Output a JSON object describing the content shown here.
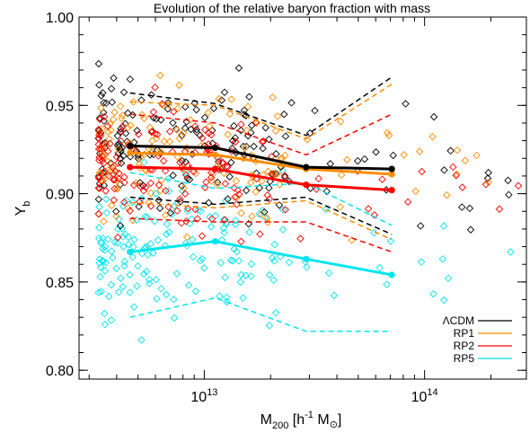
{
  "chart_data": {
    "type": "scatter",
    "title": "Evolution of the relative  baryon fraction with mass",
    "xlabel": {
      "main": "M",
      "sub": "200",
      "unit_open": " [h",
      "unit_exp": "-1",
      "unit_mid": " M",
      "unit_sub": "⊙",
      "unit_close": "]"
    },
    "ylabel": {
      "main": "Y",
      "sub": "b"
    },
    "x_scale": "log",
    "xlim": [
      2700000000000.0,
      290000000000000.0
    ],
    "ylim": [
      0.795,
      1.0
    ],
    "x_ticks": [
      {
        "value": 10000000000000.0,
        "base": "10",
        "exp": "13"
      },
      {
        "value": 100000000000000.0,
        "base": "10",
        "exp": "14"
      }
    ],
    "y_ticks": [
      {
        "value": 0.8,
        "label": "0.80"
      },
      {
        "value": 0.85,
        "label": "0.85"
      },
      {
        "value": 0.9,
        "label": "0.90"
      },
      {
        "value": 0.95,
        "label": "0.95"
      },
      {
        "value": 1.0,
        "label": "1.00"
      }
    ],
    "legend_position": "bottom-right",
    "series": [
      {
        "name": "ΛCDM",
        "color": "#000000",
        "median": {
          "x": [
            4600000000000.0,
            11200000000000.0,
            29000000000000.0,
            71000000000000.0
          ],
          "y": [
            0.927,
            0.926,
            0.915,
            0.914
          ]
        },
        "upper": {
          "x": [
            4600000000000.0,
            11200000000000.0,
            29000000000000.0,
            71000000000000.0
          ],
          "y": [
            0.957,
            0.951,
            0.933,
            0.966
          ]
        },
        "lower": {
          "x": [
            4600000000000.0,
            11200000000000.0,
            29000000000000.0,
            71000000000000.0
          ],
          "y": [
            0.898,
            0.894,
            0.898,
            0.877
          ]
        }
      },
      {
        "name": "RP1",
        "color": "#ff8c00",
        "median": {
          "x": [
            4600000000000.0,
            11200000000000.0,
            29000000000000.0,
            71000000000000.0
          ],
          "y": [
            0.923,
            0.922,
            0.914,
            0.911
          ]
        },
        "upper": {
          "x": [
            4600000000000.0,
            11200000000000.0,
            29000000000000.0,
            71000000000000.0
          ],
          "y": [
            0.952,
            0.95,
            0.931,
            0.962
          ]
        },
        "lower": {
          "x": [
            4600000000000.0,
            11200000000000.0,
            29000000000000.0,
            71000000000000.0
          ],
          "y": [
            0.895,
            0.892,
            0.896,
            0.874
          ]
        }
      },
      {
        "name": "RP2",
        "color": "#ff0000",
        "median": {
          "x": [
            4600000000000.0,
            11200000000000.0,
            29000000000000.0,
            71000000000000.0
          ],
          "y": [
            0.915,
            0.914,
            0.905,
            0.902
          ]
        },
        "upper": {
          "x": [
            4600000000000.0,
            11200000000000.0,
            29000000000000.0,
            71000000000000.0
          ],
          "y": [
            0.945,
            0.94,
            0.922,
            0.945
          ]
        },
        "lower": {
          "x": [
            4600000000000.0,
            11200000000000.0,
            29000000000000.0,
            71000000000000.0
          ],
          "y": [
            0.886,
            0.884,
            0.884,
            0.867
          ]
        }
      },
      {
        "name": "RP5",
        "color": "#00e5ee",
        "median": {
          "x": [
            4600000000000.0,
            11200000000000.0,
            29000000000000.0,
            71000000000000.0
          ],
          "y": [
            0.867,
            0.873,
            0.863,
            0.854
          ]
        },
        "upper": {
          "x": [
            4600000000000.0,
            11200000000000.0,
            29000000000000.0,
            71000000000000.0
          ],
          "y": [
            0.912,
            0.903,
            0.906,
            0.882
          ]
        },
        "lower": {
          "x": [
            4600000000000.0,
            11200000000000.0,
            29000000000000.0,
            71000000000000.0
          ],
          "y": [
            0.83,
            0.841,
            0.822,
            0.822
          ]
        }
      }
    ]
  }
}
